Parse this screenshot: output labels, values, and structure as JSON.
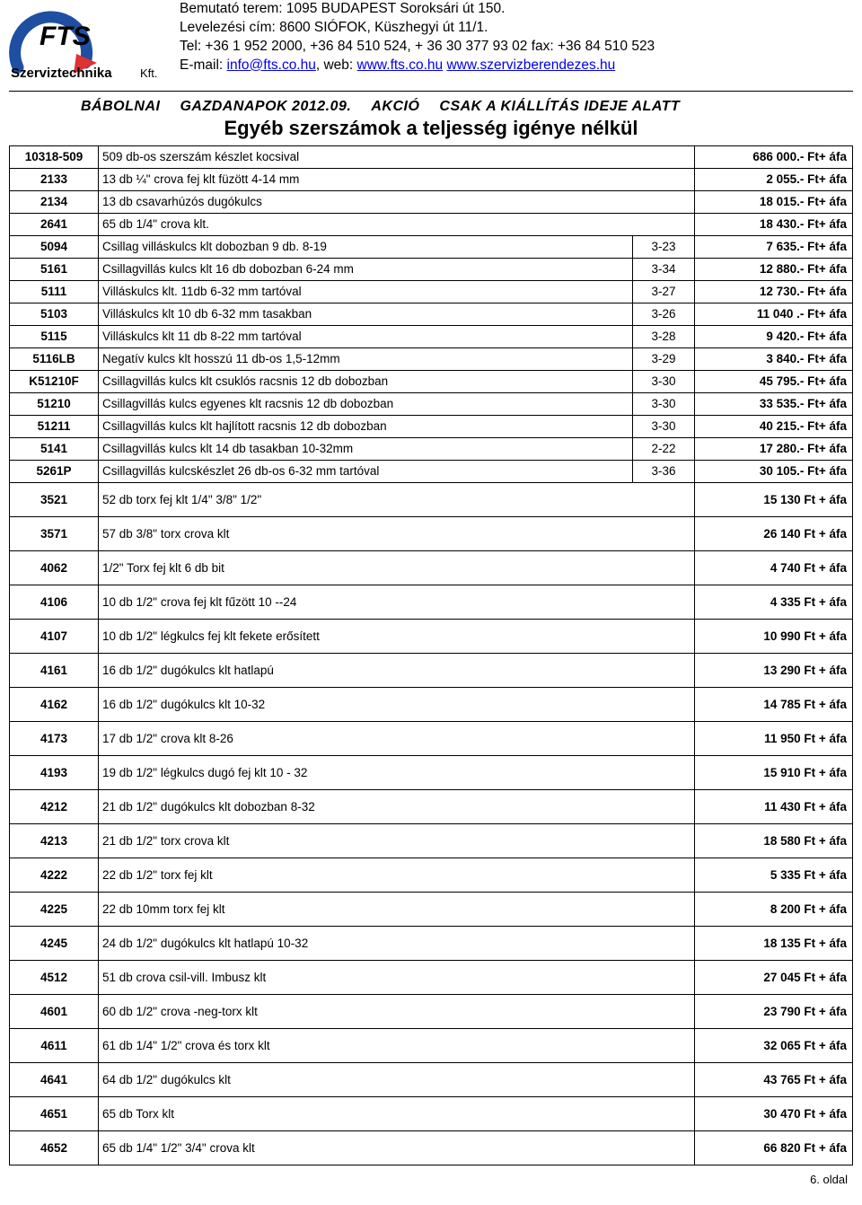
{
  "header": {
    "line1": "Bemutató terem: 1095 BUDAPEST Soroksári út 150.",
    "line2": "Levelezési cím: 8600 SIÓFOK, Küszhegyi út 11/1.",
    "line3_pre": "Tel: +36 1 952 2000, +36 84 510 524, + 36 30 377 93 02 fax: +36 84 510 523",
    "line4_pre": "E-mail: ",
    "email_link": "info@fts.co.hu",
    "line4_mid": ",  web: ",
    "web1": "www.fts.co.hu",
    "line4_sep": "   ",
    "web2": "www.szervizberendezes.hu"
  },
  "banner_left": "BÁBOLNAI",
  "banner_mid": "GAZDANAPOK 2012.09.",
  "banner_right": "AKCIÓ",
  "banner_right2": "CSAK A KIÁLLÍTÁS IDEJE ALATT",
  "title": "Egyéb szerszámok a teljesség igénye nélkül",
  "rows": [
    {
      "c": "10318-509",
      "d": "509 db-os szerszám készlet kocsival",
      "pg": "",
      "p": "686 000.- Ft+ áfa",
      "t": true
    },
    {
      "c": "2133",
      "d": "13 db ¼\" crova fej klt füzött 4-14 mm",
      "pg": "",
      "p": "2 055.- Ft+ áfa",
      "t": true
    },
    {
      "c": "2134",
      "d": "13 db csavarhúzós dugókulcs",
      "pg": "",
      "p": "18 015.- Ft+ áfa",
      "t": true
    },
    {
      "c": "2641",
      "d": "65 db 1/4\" crova klt.",
      "pg": "",
      "p": "18 430.- Ft+ áfa",
      "t": true
    },
    {
      "c": "5094",
      "d": "Csillag villáskulcs klt dobozban 9 db. 8-19",
      "pg": "3-23",
      "p": "7 635.- Ft+ áfa",
      "t": true
    },
    {
      "c": "5161",
      "d": "Csillagvillás kulcs klt 16 db dobozban 6-24 mm",
      "pg": "3-34",
      "p": "12 880.- Ft+ áfa",
      "t": true
    },
    {
      "c": "5111",
      "d": "Villáskulcs klt. 11db 6-32 mm   tartóval",
      "pg": "3-27",
      "p": "12 730.- Ft+ áfa",
      "t": true
    },
    {
      "c": "5103",
      "d": "Villáskulcs klt 10 db 6-32 mm tasakban",
      "pg": "3-26",
      "p": "11 040 .- Ft+ áfa",
      "t": true
    },
    {
      "c": "5115",
      "d": "Villáskulcs klt 11 db 8-22 mm tartóval",
      "pg": "3-28",
      "p": "9 420.- Ft+ áfa",
      "t": true
    },
    {
      "c": "5116LB",
      "d": "Negatív kulcs klt hosszú 11 db-os 1,5-12mm",
      "pg": "3-29",
      "p": "3 840.- Ft+ áfa",
      "t": true
    },
    {
      "c": "K51210F",
      "d": "Csillagvillás kulcs klt csuklós racsnis 12 db dobozban",
      "pg": "3-30",
      "p": "45 795.- Ft+ áfa",
      "t": true
    },
    {
      "c": "51210",
      "d": "Csillagvillás kulcs egyenes klt racsnis 12 db dobozban",
      "pg": "3-30",
      "p": "33 535.- Ft+ áfa",
      "t": true
    },
    {
      "c": "51211",
      "d": "Csillagvillás kulcs klt hajlított racsnis 12 db dobozban",
      "pg": "3-30",
      "p": "40 215.- Ft+ áfa",
      "t": true
    },
    {
      "c": "5141",
      "d": "Csillagvillás kulcs klt 14 db tasakban  10-32mm",
      "pg": "2-22",
      "p": "17 280.- Ft+ áfa",
      "t": true
    },
    {
      "c": "5261P",
      "d": "Csillagvillás kulcskészlet 26 db-os 6-32 mm   tartóval",
      "pg": "3-36",
      "p": "30 105.- Ft+ áfa",
      "t": true
    },
    {
      "c": "3521",
      "d": "52 db torx fej klt 1/4\" 3/8\" 1/2\"",
      "pg": "",
      "p": "15 130 Ft + áfa",
      "t": false
    },
    {
      "c": "3571",
      "d": "57 db 3/8\" torx crova klt",
      "pg": "",
      "p": "26 140 Ft + áfa",
      "t": false
    },
    {
      "c": "4062",
      "d": "1/2\" Torx fej klt 6 db bit",
      "pg": "",
      "p": "4 740 Ft + áfa",
      "t": false
    },
    {
      "c": "4106",
      "d": "10 db 1/2\" crova fej klt fűzött 10 --24",
      "pg": "",
      "p": "4 335 Ft + áfa",
      "t": false
    },
    {
      "c": "4107",
      "d": "10 db 1/2\" légkulcs fej klt fekete erősített",
      "pg": "",
      "p": "10 990 Ft + áfa",
      "t": false
    },
    {
      "c": "4161",
      "d": "16 db 1/2\" dugókulcs klt hatlapú",
      "pg": "",
      "p": "13 290 Ft + áfa",
      "t": false
    },
    {
      "c": "4162",
      "d": "16 db 1/2\" dugókulcs klt 10-32",
      "pg": "",
      "p": "14 785 Ft + áfa",
      "t": false
    },
    {
      "c": "4173",
      "d": "17 db 1/2\" crova klt 8-26",
      "pg": "",
      "p": "11 950 Ft + áfa",
      "t": false
    },
    {
      "c": "4193",
      "d": "19 db 1/2\" légkulcs dugó fej klt  10 - 32",
      "pg": "",
      "p": "15 910 Ft + áfa",
      "t": false
    },
    {
      "c": "4212",
      "d": "21 db 1/2\" dugókulcs klt dobozban 8-32",
      "pg": "",
      "p": "11 430 Ft + áfa",
      "t": false
    },
    {
      "c": "4213",
      "d": "21 db 1/2\" torx crova klt",
      "pg": "",
      "p": "18 580 Ft + áfa",
      "t": false
    },
    {
      "c": "4222",
      "d": "22 db 1/2\" torx fej klt",
      "pg": "",
      "p": "5 335 Ft + áfa",
      "t": false
    },
    {
      "c": "4225",
      "d": "22 db 10mm torx fej klt",
      "pg": "",
      "p": "8 200 Ft + áfa",
      "t": false
    },
    {
      "c": "4245",
      "d": "24 db 1/2\" dugókulcs klt hatlapú 10-32",
      "pg": "",
      "p": "18 135 Ft + áfa",
      "t": false
    },
    {
      "c": "4512",
      "d": "51 db crova csil-vill. Imbusz klt",
      "pg": "",
      "p": "27 045 Ft + áfa",
      "t": false
    },
    {
      "c": "4601",
      "d": "60 db 1/2\" crova -neg-torx klt",
      "pg": "",
      "p": "23 790 Ft + áfa",
      "t": false
    },
    {
      "c": "4611",
      "d": "61 db 1/4\" 1/2\" crova és torx klt",
      "pg": "",
      "p": "32 065 Ft + áfa",
      "t": false
    },
    {
      "c": "4641",
      "d": "64 db 1/2\" dugókulcs klt",
      "pg": "",
      "p": "43 765 Ft + áfa",
      "t": false
    },
    {
      "c": "4651",
      "d": "65 db Torx klt",
      "pg": "",
      "p": "30 470 Ft + áfa",
      "t": false
    },
    {
      "c": "4652",
      "d": "65 db 1/4\" 1/2\" 3/4\" crova klt",
      "pg": "",
      "p": "66 820 Ft + áfa",
      "t": false
    }
  ],
  "page_label": "6. oldal",
  "logo": {
    "brand_top": "FTS",
    "brand_bottom": "Szerviztechnika Kft.",
    "arc_color": "#1f4fa3",
    "accent_color": "#d33",
    "text_color": "#000"
  }
}
